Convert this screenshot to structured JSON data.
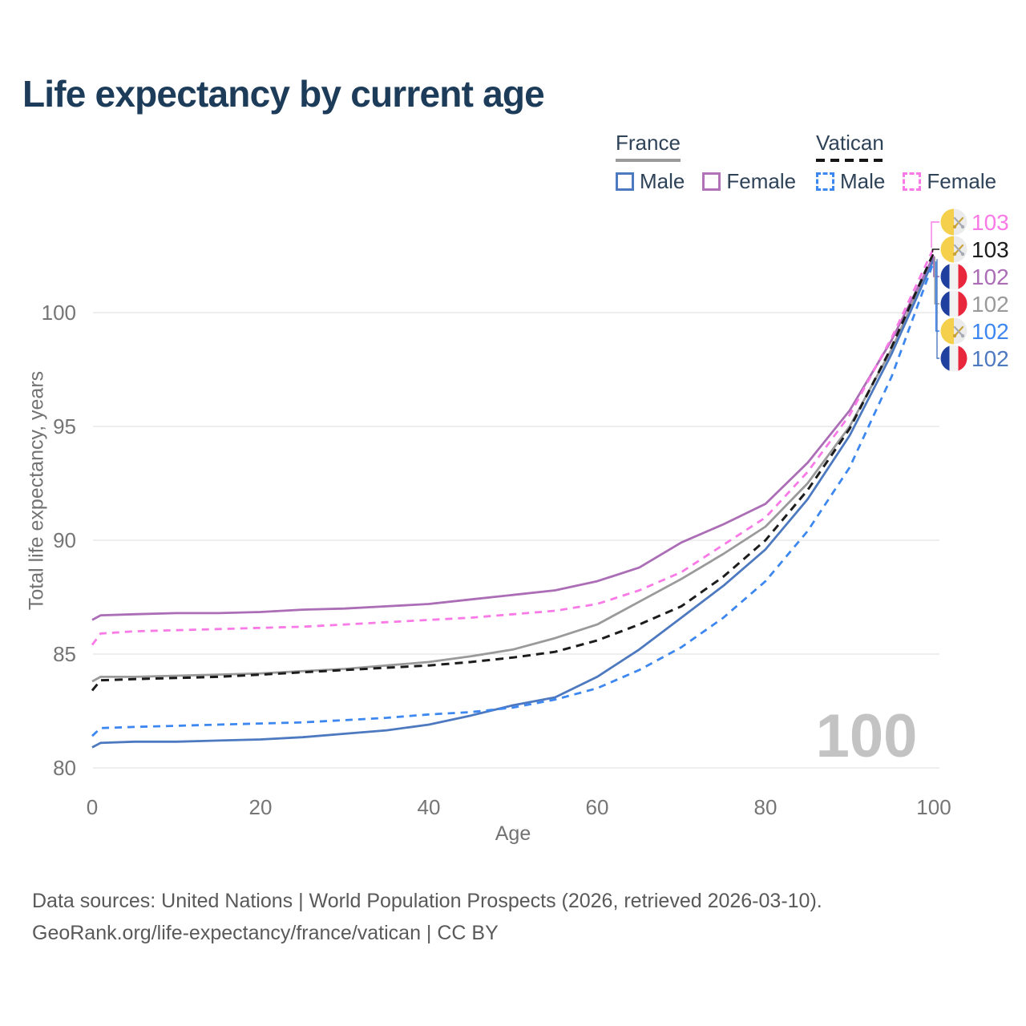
{
  "title": "Life expectancy by current age",
  "legend": {
    "groups": [
      {
        "name": "France",
        "line_style": "solid",
        "items": [
          {
            "label": "Male",
            "color": "#4d79c0",
            "dashed": false
          },
          {
            "label": "Female",
            "color": "#b173b8",
            "dashed": false
          }
        ]
      },
      {
        "name": "Vatican",
        "line_style": "dashed",
        "items": [
          {
            "label": "Male",
            "color": "#3d87f0",
            "dashed": true
          },
          {
            "label": "Female",
            "color": "#f97ae6",
            "dashed": true
          }
        ]
      }
    ]
  },
  "watermark_age": "100",
  "footer": {
    "line1": "Data sources: United Nations | World Population Prospects (2026, retrieved 2026-03-10).",
    "line2": "GeoRank.org/life-expectancy/france/vatican | CC BY"
  },
  "chart_data": {
    "type": "line",
    "title": "Life expectancy by current age",
    "xlabel": "Age",
    "ylabel": "Total life expectancy, years",
    "xlim": [
      0,
      100
    ],
    "ylim": [
      79.5,
      103.5
    ],
    "xticks": [
      0,
      20,
      40,
      60,
      80,
      100
    ],
    "yticks": [
      80,
      85,
      90,
      95,
      100
    ],
    "grid": "horizontal-only",
    "legend_position": "top-right",
    "ages": [
      0,
      1,
      5,
      10,
      15,
      20,
      25,
      30,
      35,
      40,
      45,
      50,
      55,
      60,
      65,
      70,
      75,
      80,
      85,
      90,
      95,
      100
    ],
    "series": [
      {
        "name": "France Total",
        "country": "France",
        "group": "Total",
        "color": "#9a9a9a",
        "dash": null,
        "width": 2.8,
        "values": [
          83.8,
          84.0,
          84.0,
          84.05,
          84.1,
          84.15,
          84.25,
          84.35,
          84.5,
          84.65,
          84.9,
          85.2,
          85.7,
          86.3,
          87.3,
          88.3,
          89.4,
          90.6,
          92.5,
          95.0,
          98.4,
          102.45
        ]
      },
      {
        "name": "France Female",
        "country": "France",
        "group": "Female",
        "color": "#ab6db5",
        "dash": null,
        "width": 2.8,
        "values": [
          86.5,
          86.7,
          86.75,
          86.8,
          86.8,
          86.85,
          86.95,
          87.0,
          87.1,
          87.2,
          87.4,
          87.6,
          87.8,
          88.2,
          88.8,
          89.9,
          90.7,
          91.6,
          93.4,
          95.7,
          98.8,
          102.5
        ]
      },
      {
        "name": "France Male",
        "country": "France",
        "group": "Male",
        "color": "#4d79c0",
        "dash": null,
        "width": 2.8,
        "values": [
          80.9,
          81.1,
          81.15,
          81.15,
          81.2,
          81.25,
          81.35,
          81.5,
          81.65,
          81.9,
          82.3,
          82.75,
          83.1,
          84.0,
          85.2,
          86.6,
          88.0,
          89.6,
          91.8,
          94.6,
          98.2,
          102.35
        ]
      },
      {
        "name": "Vatican Total",
        "country": "Vatican",
        "group": "Total",
        "color": "#1c1c1c",
        "dash": "10 7",
        "width": 3,
        "values": [
          83.4,
          83.85,
          83.9,
          83.95,
          84.0,
          84.1,
          84.2,
          84.3,
          84.4,
          84.5,
          84.65,
          84.85,
          85.1,
          85.6,
          86.3,
          87.1,
          88.4,
          90.0,
          92.2,
          94.9,
          98.5,
          102.65
        ]
      },
      {
        "name": "Vatican Female",
        "country": "Vatican",
        "group": "Female",
        "color": "#f97ae6",
        "dash": "9 7",
        "width": 2.8,
        "values": [
          85.4,
          85.9,
          86.0,
          86.05,
          86.1,
          86.15,
          86.2,
          86.3,
          86.4,
          86.5,
          86.6,
          86.75,
          86.9,
          87.2,
          87.8,
          88.6,
          89.8,
          91.0,
          93.0,
          95.5,
          98.9,
          102.85
        ]
      },
      {
        "name": "Vatican Male",
        "country": "Vatican",
        "group": "Male",
        "color": "#3d87f0",
        "dash": "9 7",
        "width": 2.8,
        "values": [
          81.4,
          81.75,
          81.8,
          81.85,
          81.9,
          81.95,
          82.0,
          82.1,
          82.2,
          82.35,
          82.45,
          82.65,
          83.0,
          83.5,
          84.3,
          85.3,
          86.6,
          88.2,
          90.4,
          93.2,
          97.2,
          102.25
        ]
      }
    ],
    "end_labels": [
      {
        "series": "Vatican Female",
        "flag": "vatican",
        "text": "103",
        "color": "#f97ae6"
      },
      {
        "series": "Vatican Total",
        "flag": "vatican",
        "text": "103",
        "color": "#1c1c1c"
      },
      {
        "series": "France Female",
        "flag": "france",
        "text": "102",
        "color": "#ab6db5"
      },
      {
        "series": "France Total",
        "flag": "france",
        "text": "102",
        "color": "#9a9a9a"
      },
      {
        "series": "Vatican Male",
        "flag": "vatican",
        "text": "102",
        "color": "#3d87f0"
      },
      {
        "series": "France Male",
        "flag": "france",
        "text": "102",
        "color": "#4d79c0"
      }
    ]
  }
}
